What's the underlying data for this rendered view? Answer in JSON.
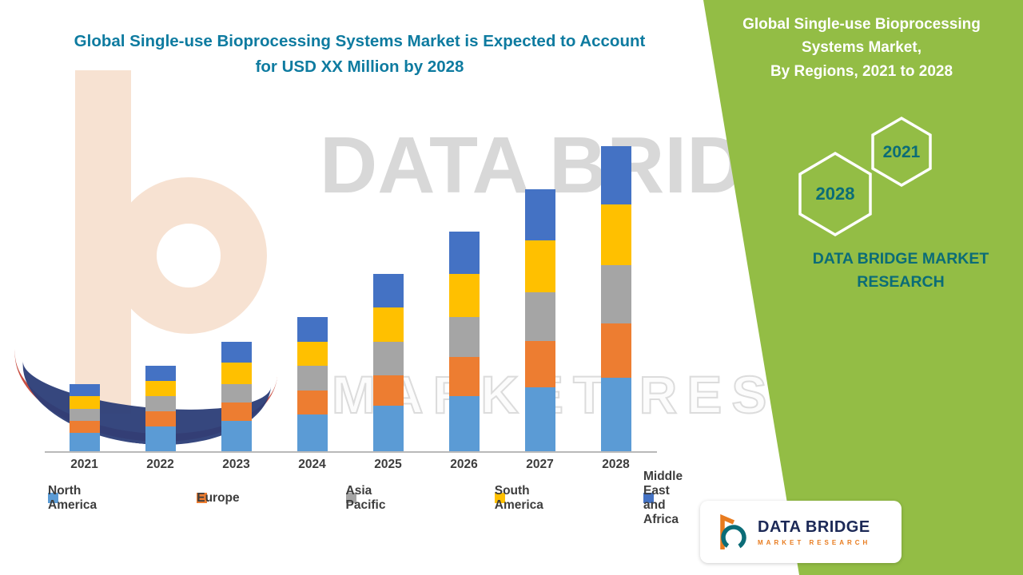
{
  "title": {
    "text": "Global Single-use Bioprocessing Systems Market is Expected to Account for USD XX Million by 2028",
    "color": "#0e7ba0"
  },
  "watermark": {
    "line1": "DATA BRIDGE",
    "line2": "MARKET RESEARCH"
  },
  "side_panel": {
    "bg_color": "#93bd45",
    "heading_line1": "Global Single-use Bioprocessing Systems Market,",
    "heading_line2": "By Regions, 2021 to 2028",
    "hexagons": [
      {
        "year": "2021"
      },
      {
        "year": "2028"
      }
    ],
    "brand_text": "DATA BRIDGE MARKET RESEARCH",
    "brand_color": "#0b6c77"
  },
  "logo_card": {
    "name": "DATA BRIDGE",
    "subtitle": "MARKET RESEARCH",
    "name_color": "#1c2957",
    "subtitle_color": "#e87b1e"
  },
  "chart_data": {
    "type": "bar",
    "stacked": true,
    "title": "Global Single-use Bioprocessing Systems Market is Expected to Account for USD XX Million by 2028",
    "xlabel": "",
    "ylabel": "",
    "ylim": [
      0,
      100
    ],
    "units": "relative index; actual USD values shown as XX (not labeled) in source",
    "grid": false,
    "y_axis_visible": false,
    "legend_position": "bottom",
    "categories": [
      "2021",
      "2022",
      "2023",
      "2024",
      "2025",
      "2026",
      "2027",
      "2028"
    ],
    "series": [
      {
        "name": "North America",
        "color": "#5B9BD5",
        "values": [
          6,
          8,
          10,
          12,
          15,
          18,
          21,
          24
        ]
      },
      {
        "name": "Europe",
        "color": "#ED7D31",
        "values": [
          4,
          5,
          6,
          8,
          10,
          13,
          15,
          18
        ]
      },
      {
        "name": "Asia Pacific",
        "color": "#A5A5A5",
        "values": [
          4,
          5,
          6,
          8,
          11,
          13,
          16,
          19
        ]
      },
      {
        "name": "South America",
        "color": "#FFC000",
        "values": [
          4,
          5,
          7,
          8,
          11,
          14,
          17,
          20
        ]
      },
      {
        "name": "Middle East and Africa",
        "color": "#4472C4",
        "values": [
          4,
          5,
          7,
          8,
          11,
          14,
          17,
          19
        ]
      }
    ]
  }
}
